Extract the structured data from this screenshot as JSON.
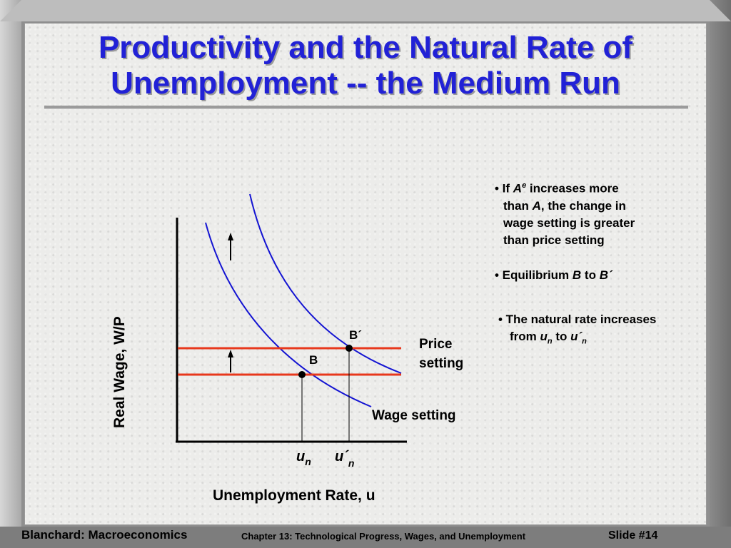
{
  "slide": {
    "title_line1": "Productivity and the Natural Rate of",
    "title_line2": "Unemployment -- the Medium Run",
    "colors": {
      "title": "#2121d6",
      "wage_curve": "#1414d2",
      "price_line": "#e8381c",
      "background": "#ececea"
    }
  },
  "diagram": {
    "y_axis_label": "Real Wage, W/P",
    "x_axis_label": "Unemployment Rate, u",
    "curve_labels": {
      "price_setting_line1": "Price",
      "price_setting_line2": "setting",
      "wage_setting": "Wage setting"
    },
    "points": {
      "B": "B",
      "B_prime": "B´"
    },
    "x_ticks": {
      "un_base": "u",
      "un_sub": "n",
      "unp_base": "u´",
      "unp_sub": "n"
    }
  },
  "bullets": {
    "b1": {
      "pre": "• If ",
      "A": "A",
      "sup": "e",
      "mid": " increases more",
      "line2_pre": "than ",
      "A2": "A",
      "line2_post": ", the change in",
      "line3": "wage setting is greater",
      "line4": "than price setting"
    },
    "b2": {
      "pre": "• Equilibrium ",
      "B": "B",
      "mid": " to ",
      "Bp": "B´"
    },
    "b3": {
      "line1": "• The natural rate increases",
      "pre": "from ",
      "u1": "u",
      "sub1": "n",
      "mid": " to ",
      "u2": "u´",
      "sub2": "n"
    }
  },
  "footer": {
    "left": "Blanchard: Macroeconomics",
    "middle": "Chapter 13: Technological Progress, Wages, and Unemployment",
    "right": "Slide #14"
  }
}
